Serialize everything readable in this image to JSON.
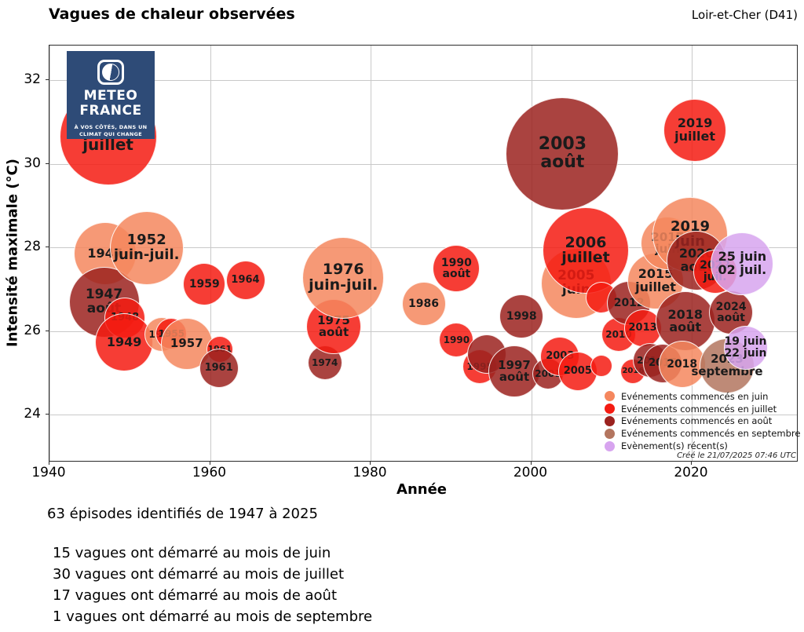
{
  "header": {
    "title": "Vagues de chaleur observées",
    "region": "Loir-et-Cher (D41)"
  },
  "logo": {
    "brand_line1": "METEO",
    "brand_line2": "FRANCE",
    "tagline_line1": "À VOS CÔTÉS, DANS UN",
    "tagline_line2": "CLIMAT QUI CHANGE"
  },
  "chart_data": {
    "type": "bubble",
    "title": "Vagues de chaleur observées",
    "xlabel": "Année",
    "ylabel": "Intensité maximale (°C)",
    "xlim": [
      1940,
      2033.3
    ],
    "ylim": [
      22.8,
      32.8
    ],
    "xticks": [
      1940,
      1960,
      1980,
      2000,
      2020
    ],
    "yticks": [
      24,
      26,
      28,
      30,
      32
    ],
    "grid": true,
    "colors": {
      "juin": "#F5875E",
      "juillet": "#F41B12",
      "aout": "#9B221F",
      "septembre": "#B3755F",
      "recent": "#D7A4EF"
    },
    "points": [
      {
        "label": "1947",
        "month": "juin",
        "year": 1946.9,
        "tmax": 27.85,
        "r": 40
      },
      {
        "label": "1947\njuillet",
        "month": "juillet",
        "year": 1947.3,
        "tmax": 30.65,
        "r": 62
      },
      {
        "label": "1947\naoût",
        "month": "aout",
        "year": 1946.8,
        "tmax": 26.69,
        "r": 45
      },
      {
        "label": "1948",
        "month": "juillet",
        "year": 1949.4,
        "tmax": 26.31,
        "r": 26
      },
      {
        "label": "1949",
        "month": "juillet",
        "year": 1949.3,
        "tmax": 25.73,
        "r": 37
      },
      {
        "label": "1952\njuin-juil.",
        "month": "juin",
        "year": 1952.1,
        "tmax": 27.98,
        "r": 47
      },
      {
        "label": "1953",
        "month": "juin",
        "year": 1954.0,
        "tmax": 25.92,
        "r": 22
      },
      {
        "label": "1955",
        "month": "juillet",
        "year": 1955.2,
        "tmax": 25.93,
        "r": 20
      },
      {
        "label": "1957",
        "month": "juin",
        "year": 1957.1,
        "tmax": 25.69,
        "r": 33
      },
      {
        "label": "1959",
        "month": "juillet",
        "year": 1959.3,
        "tmax": 27.12,
        "r": 27
      },
      {
        "label": "1961",
        "month": "juillet",
        "year": 1961.2,
        "tmax": 25.56,
        "r": 17
      },
      {
        "label": "1961",
        "month": "aout",
        "year": 1961.1,
        "tmax": 25.11,
        "r": 25
      },
      {
        "label": "1964",
        "month": "juillet",
        "year": 1964.4,
        "tmax": 27.21,
        "r": 25
      },
      {
        "label": "1974",
        "month": "aout",
        "year": 1974.3,
        "tmax": 25.24,
        "r": 22
      },
      {
        "label": "1975\naoût",
        "month": "juillet",
        "year": 1975.4,
        "tmax": 26.1,
        "r": 35
      },
      {
        "label": "1976\njuin-juil.",
        "month": "juin",
        "year": 1976.6,
        "tmax": 27.27,
        "r": 52
      },
      {
        "label": "1986",
        "month": "juin",
        "year": 1986.6,
        "tmax": 26.65,
        "r": 28
      },
      {
        "label": "1990\naoût",
        "month": "juillet",
        "year": 1990.7,
        "tmax": 27.49,
        "r": 30
      },
      {
        "label": "1990",
        "month": "juillet",
        "year": 1990.7,
        "tmax": 25.78,
        "r": 22
      },
      {
        "label": "1995",
        "month": "juillet",
        "year": 1993.6,
        "tmax": 25.15,
        "r": 22
      },
      {
        "label": "",
        "month": "aout",
        "year": 1994.5,
        "tmax": 25.45,
        "r": 25
      },
      {
        "label": "1997\naoût",
        "month": "aout",
        "year": 1997.9,
        "tmax": 25.03,
        "r": 33
      },
      {
        "label": "1998",
        "month": "aout",
        "year": 1998.8,
        "tmax": 26.35,
        "r": 28
      },
      {
        "label": "2001",
        "month": "aout",
        "year": 2002.1,
        "tmax": 24.98,
        "r": 20
      },
      {
        "label": "2003\naoût",
        "month": "aout",
        "year": 2003.9,
        "tmax": 30.23,
        "r": 72
      },
      {
        "label": "2003",
        "month": "juillet",
        "year": 2003.6,
        "tmax": 25.39,
        "r": 25
      },
      {
        "label": "2005\njuin",
        "month": "juin",
        "year": 2005.6,
        "tmax": 27.14,
        "r": 45
      },
      {
        "label": "2005",
        "month": "juillet",
        "year": 2005.8,
        "tmax": 25.03,
        "r": 25
      },
      {
        "label": "2006\njuillet",
        "month": "juillet",
        "year": 2006.8,
        "tmax": 27.92,
        "r": 55
      },
      {
        "label": "",
        "month": "juillet",
        "year": 2008.7,
        "tmax": 26.8,
        "r": 20
      },
      {
        "label": "",
        "month": "juillet",
        "year": 2008.7,
        "tmax": 25.16,
        "r": 14
      },
      {
        "label": "2010",
        "month": "juillet",
        "year": 2010.9,
        "tmax": 25.92,
        "r": 22
      },
      {
        "label": "2012",
        "month": "aout",
        "year": 2012.2,
        "tmax": 26.67,
        "r": 28
      },
      {
        "label": "2016",
        "month": "juillet",
        "year": 2012.7,
        "tmax": 25.03,
        "r": 16
      },
      {
        "label": "2013",
        "month": "juillet",
        "year": 2013.9,
        "tmax": 26.07,
        "r": 24
      },
      {
        "label": "2014",
        "month": "aout",
        "year": 2014.8,
        "tmax": 25.3,
        "r": 22
      },
      {
        "label": "2015\njuillet",
        "month": "juin",
        "year": 2015.5,
        "tmax": 27.19,
        "r": 36
      },
      {
        "label": "2015",
        "month": "aout",
        "year": 2016.4,
        "tmax": 25.22,
        "r": 25
      },
      {
        "label": "2017\njuin",
        "month": "juin",
        "year": 2017.0,
        "tmax": 28.09,
        "r": 34
      },
      {
        "label": "2018\naoût",
        "month": "aout",
        "year": 2019.2,
        "tmax": 26.23,
        "r": 38
      },
      {
        "label": "2018",
        "month": "juin",
        "year": 2018.8,
        "tmax": 25.2,
        "r": 30
      },
      {
        "label": "2019\njuin",
        "month": "juin",
        "year": 2019.8,
        "tmax": 28.3,
        "r": 48
      },
      {
        "label": "2019\njuillet",
        "month": "juillet",
        "year": 2020.4,
        "tmax": 30.8,
        "r": 40
      },
      {
        "label": "2020\naoût",
        "month": "aout",
        "year": 2020.6,
        "tmax": 27.68,
        "r": 38
      },
      {
        "label": "2022\njuil.",
        "month": "juillet",
        "year": 2022.9,
        "tmax": 27.42,
        "r": 28
      },
      {
        "label": "2024\naoût",
        "month": "aout",
        "year": 2024.9,
        "tmax": 26.44,
        "r": 28
      },
      {
        "label": "2023\nseptembre",
        "month": "septembre",
        "year": 2024.4,
        "tmax": 25.17,
        "r": 35
      },
      {
        "label": "25 juin\n02 juil.",
        "month": "recent",
        "year": 2026.3,
        "tmax": 27.61,
        "r": 40
      },
      {
        "label": "19 juin\n22 juin",
        "month": "recent",
        "year": 2026.7,
        "tmax": 25.6,
        "r": 28
      }
    ]
  },
  "legend": {
    "items": [
      {
        "label": "Evénements commencés en juin",
        "color": "#F5875E"
      },
      {
        "label": "Evénements commencés en juillet",
        "color": "#F41B12"
      },
      {
        "label": "Evénements commencés en août",
        "color": "#9B221F"
      },
      {
        "label": "Evénements commencés en septembre",
        "color": "#B3755F"
      },
      {
        "label": "Evènement(s) récent(s)",
        "color": "#D7A4EF"
      }
    ],
    "created": "Créé le 21/07/2025 07:46 UTC"
  },
  "stats": {
    "summary": "63 épisodes identifiés de 1947 à 2025",
    "lines": [
      "15 vagues ont démarré au mois de juin",
      "30 vagues ont démarré au mois de juillet",
      "17 vagues ont démarré au mois de août",
      "1 vagues ont démarré au mois de septembre"
    ]
  }
}
